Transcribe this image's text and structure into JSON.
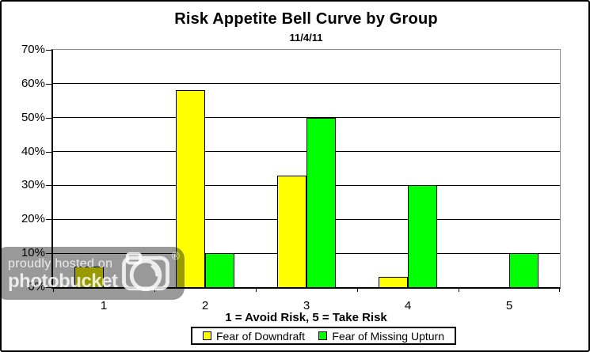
{
  "chart_data": {
    "type": "bar",
    "title": "Risk Appetite Bell Curve by Group",
    "subtitle": "11/4/11",
    "categories": [
      "1",
      "2",
      "3",
      "4",
      "5"
    ],
    "series": [
      {
        "name": "Fear of Downdraft",
        "color": "#FFFF00",
        "values": [
          6,
          58,
          33,
          3,
          0
        ]
      },
      {
        "name": "Fear of Missing Upturn",
        "color": "#00FF00",
        "values": [
          0,
          10,
          50,
          30,
          10
        ]
      }
    ],
    "xlabel": "1 = Avoid Risk, 5 = Take Risk",
    "ylabel": "",
    "ylim": [
      0,
      70
    ],
    "ytick_step": 10,
    "ytick_labels": [
      "0%",
      "10%",
      "20%",
      "30%",
      "40%",
      "50%",
      "60%",
      "70%"
    ],
    "grid": true,
    "legend_position": "bottom",
    "colors": {
      "gridline": "#000000",
      "plot_border": "#909090",
      "axis": "#000000",
      "background": "#FFFFFF"
    }
  },
  "watermark": {
    "line1": "proudly hosted on",
    "line2": "photobucket",
    "registered": "®"
  }
}
